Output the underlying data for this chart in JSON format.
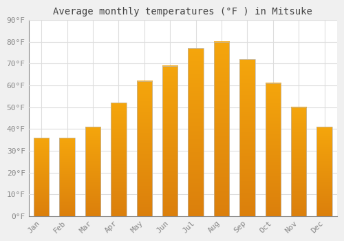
{
  "title": "Average monthly temperatures (°F ) in Mitsuke",
  "months": [
    "Jan",
    "Feb",
    "Mar",
    "Apr",
    "May",
    "Jun",
    "Jul",
    "Aug",
    "Sep",
    "Oct",
    "Nov",
    "Dec"
  ],
  "values": [
    36,
    36,
    41,
    52,
    62,
    69,
    77,
    80,
    72,
    61,
    50,
    41
  ],
  "bar_color_light": "#FFD060",
  "bar_color_dark": "#F5A000",
  "bar_edge_color": "#BBBBBB",
  "background_color": "#FFFFFF",
  "fig_background_color": "#F0F0F0",
  "grid_color": "#DDDDDD",
  "ylim": [
    0,
    90
  ],
  "yticks": [
    0,
    10,
    20,
    30,
    40,
    50,
    60,
    70,
    80,
    90
  ],
  "ytick_labels": [
    "0°F",
    "10°F",
    "20°F",
    "30°F",
    "40°F",
    "50°F",
    "60°F",
    "70°F",
    "80°F",
    "90°F"
  ],
  "title_fontsize": 10,
  "tick_fontsize": 8,
  "font_family": "monospace"
}
